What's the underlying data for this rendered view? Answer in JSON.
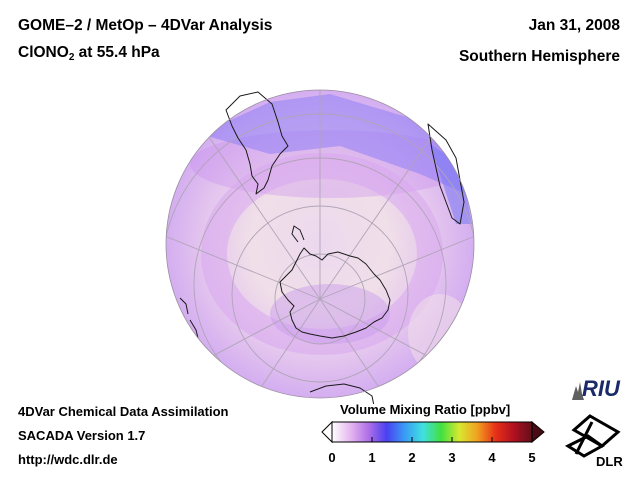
{
  "header": {
    "title_line1": "GOME–2 / MetOp – 4DVar Analysis",
    "species_main": "ClONO",
    "species_sub": "2",
    "species_rest": " at 55.4 hPa",
    "date": "Jan 31, 2008",
    "hemisphere": "Southern Hemisphere"
  },
  "footer": {
    "line1": "4DVar Chemical Data Assimilation",
    "line2": "SACADA Version 1.7",
    "line3": "http://wdc.dlr.de"
  },
  "colorbar": {
    "title": "Volume Mixing Ratio [ppbv]",
    "min": 0,
    "max": 5,
    "ticks": [
      "0",
      "1",
      "2",
      "3",
      "4",
      "5"
    ],
    "colors": [
      "#ffffff",
      "#e6b8f0",
      "#b070e8",
      "#4a40f0",
      "#3a9cf5",
      "#40e0e0",
      "#40e040",
      "#d8e830",
      "#f0a020",
      "#e83018",
      "#b01020",
      "#60101a"
    ]
  },
  "logos": {
    "riu": "RIU",
    "dlr": "DLR"
  },
  "map": {
    "projection": "orthographic",
    "center": "South Pole",
    "ocean_color": "#e8d6ec",
    "land_outline_color": "#1a1a1a",
    "grid_color": "#b0a4b8"
  }
}
